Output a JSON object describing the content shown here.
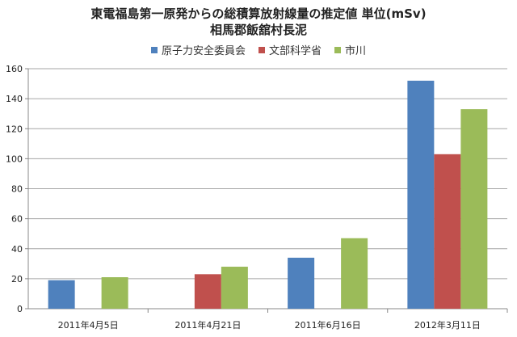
{
  "chart_data": {
    "type": "bar",
    "title": "東電福島第一原発からの総積算放射線量の推定値 単位(mSv)",
    "subtitle": "相馬郡飯舘村長泥",
    "categories": [
      "2011年4月5日",
      "2011年4月21日",
      "2011年6月16日",
      "2012年3月11日"
    ],
    "series": [
      {
        "name": "原子力安全委員会",
        "color": "#4f81bd",
        "values": [
          19,
          null,
          34,
          152
        ]
      },
      {
        "name": "文部科学省",
        "color": "#c0504d",
        "values": [
          null,
          23,
          null,
          103
        ]
      },
      {
        "name": "市川",
        "color": "#9bbb59",
        "values": [
          21,
          28,
          47,
          133
        ]
      }
    ],
    "ylim": [
      0,
      160
    ],
    "yticks": [
      "0",
      "20",
      "40",
      "60",
      "80",
      "100",
      "120",
      "140",
      "160"
    ],
    "xlabel": "",
    "ylabel": "",
    "grid": true,
    "legend": "top"
  }
}
